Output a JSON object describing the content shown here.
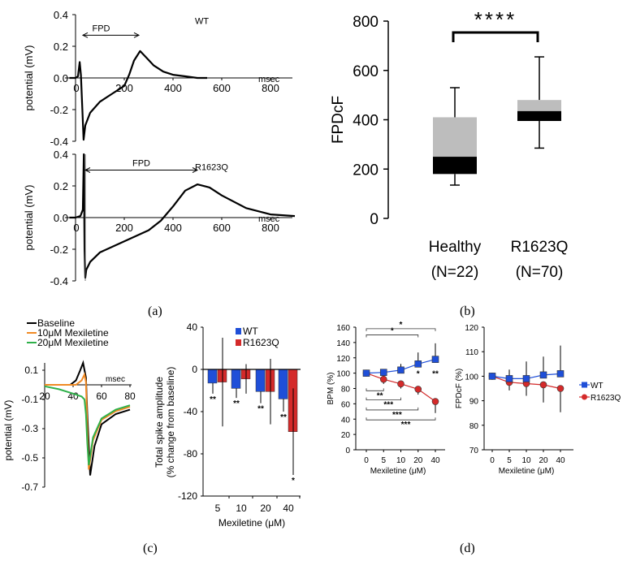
{
  "panel_labels": {
    "a": "(a)",
    "b": "(b)",
    "c": "(c)",
    "d": "(d)"
  },
  "chart_data": [
    {
      "id": "a-wt",
      "type": "line",
      "annotation": "WT",
      "ylabel": "potential (mV)",
      "xunit": "msec",
      "fpd_label": "FPD",
      "fpd_range": [
        30,
        260
      ],
      "ylim": [
        -0.4,
        0.4
      ],
      "yticks": [
        "0.4",
        "0.2",
        "0.0",
        "-0.2",
        "-0.4"
      ],
      "xticks": [
        "0",
        "200",
        "400",
        "600",
        "800"
      ],
      "x": [
        -25,
        0,
        10,
        17,
        22,
        28,
        33,
        40,
        60,
        100,
        150,
        200,
        220,
        240,
        265,
        290,
        320,
        360,
        400,
        450,
        500,
        540
      ],
      "y": [
        0,
        0,
        0.01,
        0.1,
        0.02,
        -0.2,
        -0.39,
        -0.3,
        -0.22,
        -0.15,
        -0.1,
        -0.05,
        0.02,
        0.11,
        0.17,
        0.13,
        0.08,
        0.04,
        0.02,
        0.01,
        0.0,
        0.0
      ]
    },
    {
      "id": "a-r1623q",
      "type": "line",
      "annotation": "R1623Q",
      "ylabel": "potential (mV)",
      "xunit": "msec",
      "fpd_label": "FPD",
      "fpd_range": [
        40,
        500
      ],
      "ylim": [
        -0.4,
        0.4
      ],
      "yticks": [
        "0.4",
        "0.2",
        "0.0",
        "-0.2",
        "-0.4"
      ],
      "xticks": [
        "0",
        "200",
        "400",
        "600",
        "800"
      ],
      "x": [
        -25,
        0,
        20,
        30,
        34,
        37,
        40,
        44,
        60,
        100,
        200,
        300,
        350,
        400,
        450,
        500,
        550,
        600,
        700,
        800,
        900
      ],
      "y": [
        0,
        0,
        0.01,
        0.05,
        0.4,
        -0.2,
        -0.38,
        -0.33,
        -0.28,
        -0.22,
        -0.15,
        -0.08,
        -0.02,
        0.07,
        0.17,
        0.21,
        0.19,
        0.14,
        0.06,
        0.02,
        0.01
      ]
    },
    {
      "id": "b",
      "type": "box",
      "ylabel": "FPDcF",
      "ylim": [
        0,
        800
      ],
      "yticks": [
        "0",
        "200",
        "400",
        "600",
        "800"
      ],
      "significance": "****",
      "colors": {
        "upper_box": "#bdbdbd",
        "lower_box": "#000000"
      },
      "groups": [
        {
          "name": "Healthy",
          "n_label": "(N=22)",
          "min": 135,
          "q1": 180,
          "median": 250,
          "q3": 410,
          "max": 530
        },
        {
          "name": "R1623Q",
          "n_label": "(N=70)",
          "min": 285,
          "q1": 395,
          "median": 435,
          "q3": 480,
          "max": 655
        }
      ]
    },
    {
      "id": "c-traces",
      "type": "line",
      "ylabel": "potential (mV)",
      "xunit": "msec",
      "xlim": [
        20,
        80
      ],
      "ylim": [
        -0.7,
        0.1
      ],
      "xticks": [
        "20",
        "40",
        "60",
        "80"
      ],
      "yticks": [
        "0.1",
        "-0.1",
        "-0.3",
        "-0.5",
        "-0.7"
      ],
      "series": [
        {
          "name": "Baseline",
          "color": "#000000",
          "x": [
            20,
            38,
            42,
            45,
            47,
            49,
            50,
            52,
            55,
            60,
            70,
            80
          ],
          "y": [
            0,
            0,
            0.03,
            0.1,
            0.15,
            0.05,
            -0.2,
            -0.62,
            -0.42,
            -0.27,
            -0.2,
            -0.17
          ]
        },
        {
          "name": "10μM Mexiletine",
          "color": "#f08a24",
          "x": [
            20,
            42,
            46,
            48,
            49,
            50,
            51,
            54,
            60,
            70,
            80
          ],
          "y": [
            0,
            0,
            0.03,
            0.07,
            0.02,
            -0.3,
            -0.58,
            -0.38,
            -0.24,
            -0.18,
            -0.15
          ]
        },
        {
          "name": "20μM Mexiletine",
          "color": "#2fb04a",
          "x": [
            20,
            30,
            40,
            46,
            48,
            49,
            50,
            51,
            54,
            60,
            70,
            80
          ],
          "y": [
            -0.01,
            -0.03,
            -0.06,
            -0.08,
            -0.1,
            -0.2,
            -0.4,
            -0.55,
            -0.36,
            -0.23,
            -0.17,
            -0.14
          ]
        }
      ]
    },
    {
      "id": "c-bars",
      "type": "bar",
      "ylabel": [
        "Total spike amplitude",
        "(% change from baseline)"
      ],
      "xlabel": "Mexiletine (μM)",
      "ylim": [
        -120,
        40
      ],
      "yticks": [
        "40",
        "0",
        "-40",
        "-80",
        "-120"
      ],
      "categories": [
        "5",
        "10",
        "20",
        "40"
      ],
      "series": [
        {
          "name": "WT",
          "color": "#1f4fd8",
          "values": [
            -13,
            -18,
            -21,
            -28
          ],
          "errors": [
            10,
            9,
            11,
            12
          ],
          "stars": [
            "**",
            "**",
            "**",
            "**"
          ]
        },
        {
          "name": "R1623Q",
          "color": "#d42a2a",
          "values": [
            -12,
            -9,
            -21,
            -59
          ],
          "errors": [
            42,
            14,
            31,
            41
          ],
          "stars": [
            "",
            "",
            "",
            "*"
          ]
        }
      ]
    },
    {
      "id": "d-bpm",
      "type": "line",
      "ylabel": "BPM (%)",
      "xlabel": "Mexiletine (μM)",
      "ylim": [
        0,
        160
      ],
      "yticks": [
        "0",
        "20",
        "40",
        "60",
        "80",
        "100",
        "120",
        "140",
        "160"
      ],
      "categories": [
        "0",
        "5",
        "10",
        "20",
        "40"
      ],
      "series": [
        {
          "name": "WT",
          "color": "#1f4fd8",
          "marker": "square",
          "values": [
            100,
            101,
            104,
            112,
            118
          ],
          "errors": [
            0,
            3,
            8,
            15,
            21
          ]
        },
        {
          "name": "R1623Q",
          "color": "#d42a2a",
          "marker": "circle",
          "values": [
            100,
            92,
            86,
            79,
            63
          ],
          "errors": [
            0,
            6,
            6,
            7,
            15
          ]
        }
      ],
      "point_stars": [
        {
          "category": "20",
          "y": 100,
          "text": "*"
        },
        {
          "category": "40",
          "y": 100,
          "text": "**"
        }
      ],
      "brackets": [
        {
          "from": "0",
          "to": "40",
          "y": 158,
          "text": "*",
          "side": "up"
        },
        {
          "from": "0",
          "to": "20",
          "y": 150,
          "text": "*",
          "side": "up"
        },
        {
          "from": "0",
          "to": "5",
          "y": 77,
          "text": "**",
          "side": "down"
        },
        {
          "from": "0",
          "to": "10",
          "y": 65,
          "text": "***",
          "side": "down"
        },
        {
          "from": "0",
          "to": "20",
          "y": 52,
          "text": "***",
          "side": "down"
        },
        {
          "from": "0",
          "to": "40",
          "y": 39,
          "text": "***",
          "side": "down"
        }
      ]
    },
    {
      "id": "d-fpdcf",
      "type": "line",
      "ylabel": "FPDcF (%)",
      "xlabel": "Mexiletine (μM)",
      "ylim": [
        70,
        120
      ],
      "yticks": [
        "70",
        "80",
        "90",
        "100",
        "110",
        "120"
      ],
      "categories": [
        "0",
        "5",
        "10",
        "20",
        "40"
      ],
      "legend": "right",
      "series": [
        {
          "name": "WT",
          "color": "#1f4fd8",
          "marker": "square",
          "values": [
            100,
            99,
            99,
            100.5,
            101
          ],
          "errors": [
            0,
            3.7,
            7,
            7.5,
            11.5
          ]
        },
        {
          "name": "R1623Q",
          "color": "#d42a2a",
          "marker": "circle",
          "values": [
            100,
            97.5,
            97,
            96.5,
            95
          ],
          "errors": [
            0,
            3.3,
            5,
            7.2,
            9.7
          ]
        }
      ]
    }
  ]
}
